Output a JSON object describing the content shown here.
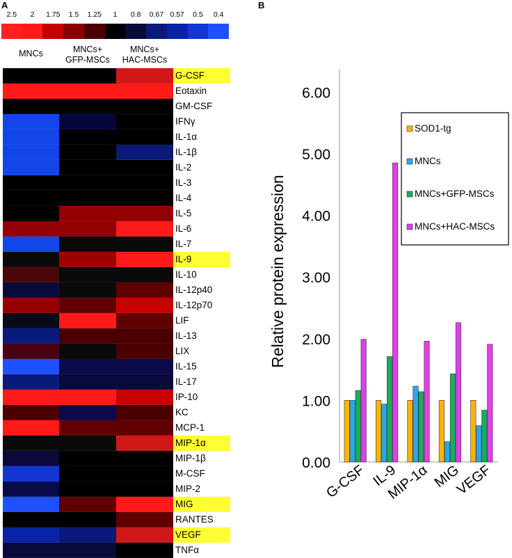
{
  "panels": {
    "a": "A",
    "b": "B"
  },
  "scale": {
    "labels": [
      "2.5",
      "2",
      "1.75",
      "1.5",
      "1.25",
      "1",
      "0.8",
      "0.67",
      "0.57",
      "0.5",
      "0.4"
    ],
    "colors": [
      "#ff2020",
      "#ff1a1a",
      "#c40000",
      "#8a0000",
      "#4a0000",
      "#000000",
      "#0a0a3a",
      "#0a1a7a",
      "#0a22a8",
      "#1236d6",
      "#1e50ff"
    ]
  },
  "colors": {
    "highlight": "#ffff33"
  },
  "heatmap": {
    "columns": [
      "MNCs",
      "MNCs+\nGFP-MSCs",
      "MNCs+\nHAC-MSCs"
    ],
    "rows": [
      {
        "label": "G-CSF",
        "highlight": true,
        "colors": [
          "#000000",
          "#000000",
          "#d01818"
        ]
      },
      {
        "label": "Eotaxin",
        "highlight": false,
        "colors": [
          "#ff1a1a",
          "#ff1a1a",
          "#ff1a1a"
        ]
      },
      {
        "label": "GM-CSF",
        "highlight": false,
        "colors": [
          "#000000",
          "#000000",
          "#000000"
        ]
      },
      {
        "label": "IFNγ",
        "highlight": false,
        "colors": [
          "#1246e8",
          "#06063c",
          "#000000"
        ]
      },
      {
        "label": "IL-1α",
        "highlight": false,
        "colors": [
          "#1246e8",
          "#000000",
          "#000000"
        ]
      },
      {
        "label": "IL-1β",
        "highlight": false,
        "colors": [
          "#1246e8",
          "#000000",
          "#0a1a7a"
        ]
      },
      {
        "label": "IL-2",
        "highlight": false,
        "colors": [
          "#1246e8",
          "#000000",
          "#000000"
        ]
      },
      {
        "label": "IL-3",
        "highlight": false,
        "colors": [
          "#000000",
          "#000000",
          "#000000"
        ]
      },
      {
        "label": "IL-4",
        "highlight": false,
        "colors": [
          "#000000",
          "#000000",
          "#000000"
        ]
      },
      {
        "label": "IL-5",
        "highlight": false,
        "colors": [
          "#000000",
          "#940000",
          "#940000"
        ]
      },
      {
        "label": "IL-6",
        "highlight": false,
        "colors": [
          "#940000",
          "#940000",
          "#ff1a1a"
        ]
      },
      {
        "label": "IL-7",
        "highlight": false,
        "colors": [
          "#1246e8",
          "#0a0a0a",
          "#0a0a0a"
        ]
      },
      {
        "label": "IL-9",
        "highlight": true,
        "colors": [
          "#0a0a0a",
          "#a00000",
          "#ff1a1a"
        ]
      },
      {
        "label": "IL-10",
        "highlight": false,
        "colors": [
          "#4a0808",
          "#0a0a0a",
          "#0a0a0a"
        ]
      },
      {
        "label": "IL-12p40",
        "highlight": false,
        "colors": [
          "#0a0a3a",
          "#0a0a0a",
          "#600000"
        ]
      },
      {
        "label": "IL-12p70",
        "highlight": false,
        "colors": [
          "#940000",
          "#600000",
          "#c80000"
        ]
      },
      {
        "label": "LIF",
        "highlight": false,
        "colors": [
          "#0a0a1a",
          "#ff1a1a",
          "#600000"
        ]
      },
      {
        "label": "IL-13",
        "highlight": false,
        "colors": [
          "#0a1a7a",
          "#4a0000",
          "#4a0000"
        ]
      },
      {
        "label": "LIX",
        "highlight": false,
        "colors": [
          "#4a0010",
          "#0a0a0a",
          "#4a0000"
        ]
      },
      {
        "label": "IL-15",
        "highlight": false,
        "colors": [
          "#1e50ff",
          "#0a0a4a",
          "#0a0a4a"
        ]
      },
      {
        "label": "IL-17",
        "highlight": false,
        "colors": [
          "#0a1a7a",
          "#0a0a3a",
          "#0a0a3a"
        ]
      },
      {
        "label": "IP-10",
        "highlight": false,
        "colors": [
          "#ff1a1a",
          "#ff1a1a",
          "#c80000"
        ]
      },
      {
        "label": "KC",
        "highlight": false,
        "colors": [
          "#4a0000",
          "#0a0a4a",
          "#4a0000"
        ]
      },
      {
        "label": "MCP-1",
        "highlight": false,
        "colors": [
          "#ff1a1a",
          "#600000",
          "#600000"
        ]
      },
      {
        "label": "MIP-1α",
        "highlight": true,
        "colors": [
          "#0a0a0a",
          "#0a0a0a",
          "#d01818"
        ]
      },
      {
        "label": "MIP-1β",
        "highlight": false,
        "colors": [
          "#0a0a3a",
          "#000000",
          "#000000"
        ]
      },
      {
        "label": "M-CSF",
        "highlight": false,
        "colors": [
          "#1236d6",
          "#000000",
          "#000000"
        ]
      },
      {
        "label": "MIP-2",
        "highlight": false,
        "colors": [
          "#0a0a4a",
          "#000000",
          "#000000"
        ]
      },
      {
        "label": "MIG",
        "highlight": true,
        "colors": [
          "#1e50ff",
          "#600000",
          "#ff1a1a"
        ]
      },
      {
        "label": "RANTES",
        "highlight": false,
        "colors": [
          "#000000",
          "#000000",
          "#600000"
        ]
      },
      {
        "label": "VEGF",
        "highlight": true,
        "colors": [
          "#0a22a8",
          "#0a1a7a",
          "#d01818"
        ]
      },
      {
        "label": "TNFα",
        "highlight": false,
        "colors": [
          "#0a0a3a",
          "#0a0a3a",
          "#000000"
        ]
      }
    ]
  },
  "chart_data": {
    "type": "bar",
    "title": "",
    "xlabel": "",
    "ylabel": "Relative protein expression",
    "ylim": [
      0,
      6.5
    ],
    "yticks": [
      "0.00",
      "1.00",
      "2.00",
      "3.00",
      "4.00",
      "5.00",
      "6.00"
    ],
    "grid": false,
    "legend_position": "top-right",
    "categories": [
      "G-CSF",
      "IL-9",
      "MIP-1α",
      "MIG",
      "VEGF"
    ],
    "series": [
      {
        "name": "SOD1-tg",
        "color": "#f7b500",
        "values": [
          1.0,
          1.0,
          1.0,
          1.0,
          1.0
        ]
      },
      {
        "name": "MNCs",
        "color": "#29a8e8",
        "values": [
          1.0,
          0.94,
          1.23,
          0.33,
          0.59
        ]
      },
      {
        "name": "MNCs+GFP-MSCs",
        "color": "#1cab5e",
        "values": [
          1.16,
          1.71,
          1.14,
          1.43,
          0.84
        ]
      },
      {
        "name": "MNCs+HAC-MSCs",
        "color": "#e23ee6",
        "values": [
          1.99,
          4.85,
          1.96,
          2.26,
          1.91
        ]
      }
    ]
  }
}
